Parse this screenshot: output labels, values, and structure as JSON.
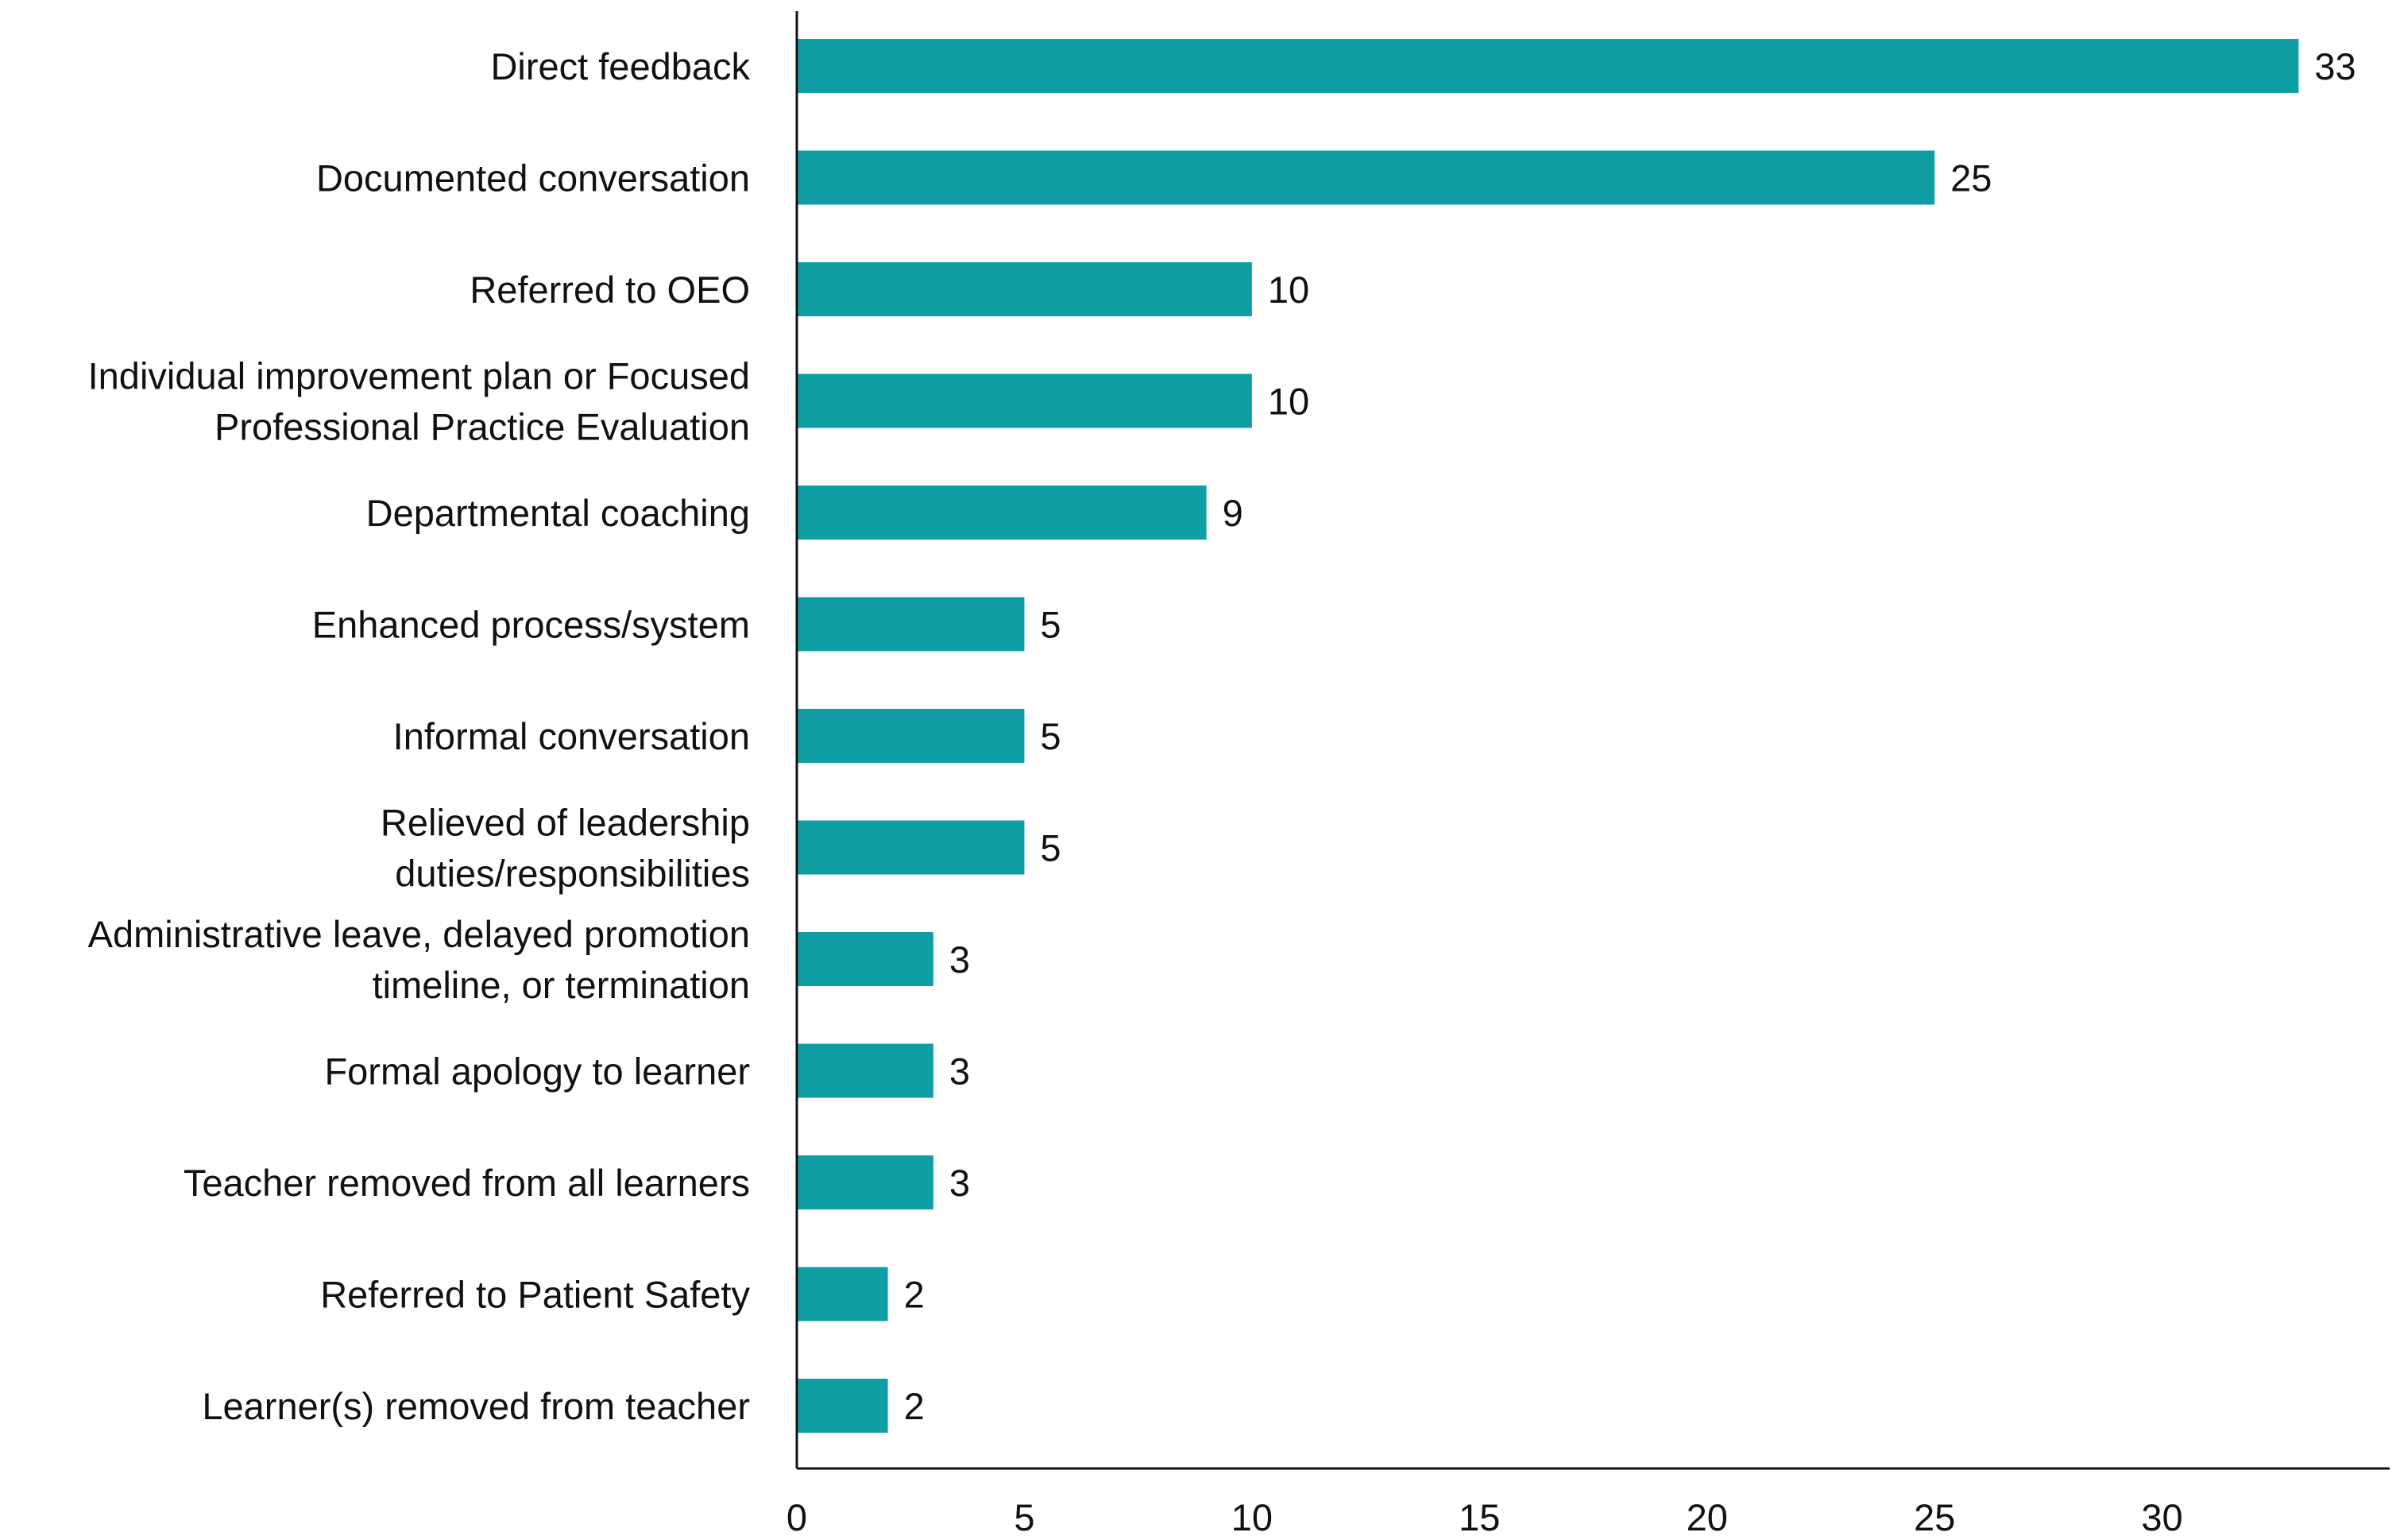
{
  "chart_data": {
    "type": "bar",
    "orientation": "horizontal",
    "categories": [
      [
        "Direct feedback"
      ],
      [
        "Documented conversation"
      ],
      [
        "Referred to OEO"
      ],
      [
        "Individual improvement plan or Focused",
        "Professional Practice Evaluation"
      ],
      [
        "Departmental coaching"
      ],
      [
        "Enhanced process/system"
      ],
      [
        "Informal conversation"
      ],
      [
        "Relieved of leadership",
        "duties/responsibilities"
      ],
      [
        "Administrative leave, delayed promotion",
        "timeline, or termination"
      ],
      [
        "Formal apology to learner"
      ],
      [
        "Teacher removed from all learners"
      ],
      [
        "Referred to Patient Safety"
      ],
      [
        "Learner(s) removed from teacher"
      ]
    ],
    "values": [
      33,
      25,
      10,
      10,
      9,
      5,
      5,
      5,
      3,
      3,
      3,
      2,
      2
    ],
    "data_labels": [
      "33",
      "25",
      "10",
      "10",
      "9",
      "5",
      "5",
      "5",
      "3",
      "3",
      "3",
      "2",
      "2"
    ],
    "xlim": [
      0,
      35
    ],
    "x_ticks": [
      0,
      5,
      10,
      15,
      20,
      25,
      30
    ],
    "x_tick_labels": [
      "0",
      "5",
      "10",
      "15",
      "20",
      "25",
      "30"
    ],
    "title": "",
    "xlabel": "",
    "ylabel": "",
    "grid": false,
    "legend": "none",
    "colors": {
      "bar": "#0f9ea3",
      "axis": "#111111",
      "text": "#111111"
    }
  }
}
